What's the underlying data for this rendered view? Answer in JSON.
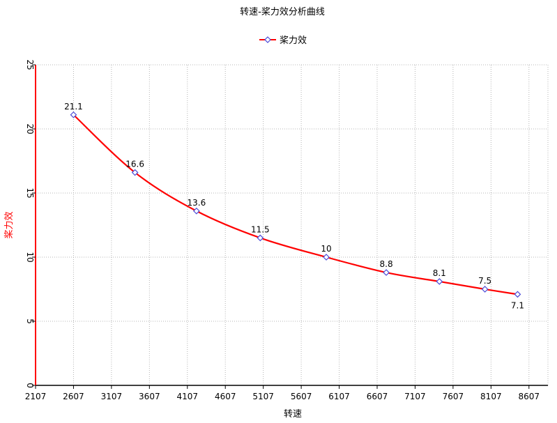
{
  "chart_data": {
    "type": "line",
    "title": "转速-桨力效分析曲线",
    "xlabel": "转速",
    "ylabel": "桨力效",
    "legend": {
      "position": "top-center",
      "entries": [
        "桨力效"
      ]
    },
    "xlim": [
      2107,
      8857
    ],
    "ylim": [
      0,
      25
    ],
    "x_ticks": [
      2107,
      2607,
      3107,
      3607,
      4107,
      4607,
      5107,
      5607,
      6107,
      6607,
      7107,
      7607,
      8107,
      8607
    ],
    "y_ticks": [
      0,
      5,
      10,
      15,
      20,
      25
    ],
    "grid": true,
    "series": [
      {
        "name": "桨力效",
        "color": "#ff0000",
        "marker": "diamond",
        "marker_color": "#4a4ad8",
        "x": [
          2607,
          3417,
          4227,
          5067,
          5937,
          6727,
          7427,
          8027,
          8457
        ],
        "y": [
          21.1,
          16.6,
          13.6,
          11.5,
          10,
          8.8,
          8.1,
          7.5,
          7.1
        ],
        "labels": [
          "21.1",
          "16.6",
          "13.6",
          "11.5",
          "10",
          "8.8",
          "8.1",
          "7.5",
          "7.1"
        ]
      }
    ]
  }
}
